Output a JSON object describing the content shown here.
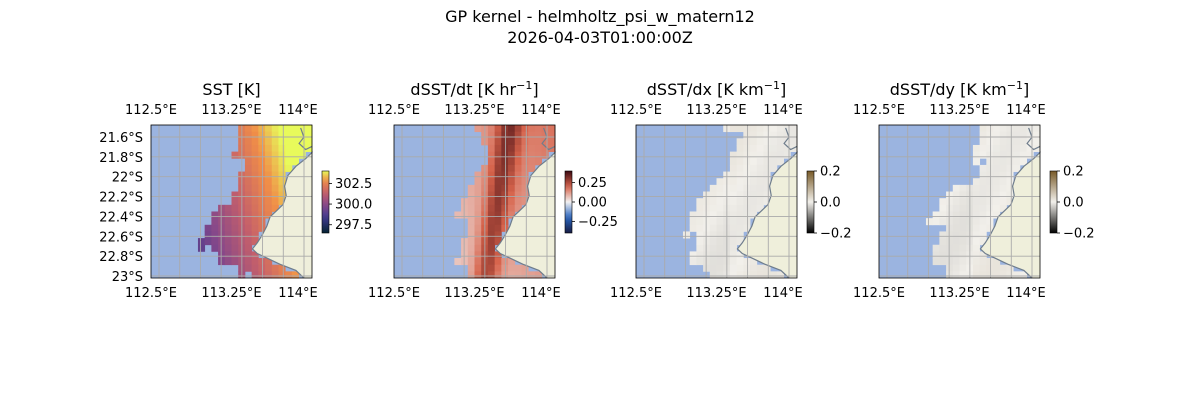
{
  "figure": {
    "title_line1": "GP kernel - helmholtz_psi_w_matern12",
    "title_line2": "2026-04-03T01:00:00Z"
  },
  "colors": {
    "ocean_mask": "#9bb4e0",
    "land": "#efefdb",
    "coast": "#6f7d8c",
    "grid": "#aaaaaa"
  },
  "chart_data": [
    {
      "type": "heatmap",
      "title": "SST [K]",
      "title_sup": "",
      "title_tail": "",
      "colormap": "thermal",
      "xlabel": "",
      "ylabel": "",
      "x_ticks": [
        "112.5°E",
        "113.25°E",
        "114°E"
      ],
      "y_ticks": [
        "21.6°S",
        "21.8°S",
        "22°S",
        "22.2°S",
        "22.4°S",
        "22.6°S",
        "22.8°S",
        "23°S"
      ],
      "show_top_ticks": true,
      "show_left_ticks": true,
      "colorbar": {
        "range": [
          296.5,
          304.0
        ],
        "ticks": [
          "297.5",
          "300.0",
          "302.5"
        ],
        "tick_values": [
          297.5,
          300.0,
          302.5
        ]
      },
      "grid": true
    },
    {
      "type": "heatmap",
      "title": "dSST/dt [K hr",
      "title_sup": "−1",
      "title_tail": "]",
      "colormap": "diverging-balance",
      "xlabel": "",
      "ylabel": "",
      "x_ticks": [
        "112.5°E",
        "113.25°E",
        "114°E"
      ],
      "y_ticks": [],
      "show_top_ticks": true,
      "show_left_ticks": false,
      "colorbar": {
        "range": [
          -0.4,
          0.4
        ],
        "ticks": [
          "0.25",
          "0.00",
          "−0.25"
        ],
        "tick_values": [
          0.25,
          0.0,
          -0.25
        ]
      },
      "grid": true
    },
    {
      "type": "heatmap",
      "title": "dSST/dx [K km",
      "title_sup": "−1",
      "title_tail": "]",
      "colormap": "diverging-gray",
      "xlabel": "",
      "ylabel": "",
      "x_ticks": [
        "112.5°E",
        "113.25°E",
        "114°E"
      ],
      "y_ticks": [],
      "show_top_ticks": true,
      "show_left_ticks": false,
      "colorbar": {
        "range": [
          -0.2,
          0.2
        ],
        "ticks": [
          "0.2",
          "0.0",
          "−0.2"
        ],
        "tick_values": [
          0.2,
          0.0,
          -0.2
        ]
      },
      "grid": true
    },
    {
      "type": "heatmap",
      "title": "dSST/dy [K km",
      "title_sup": "−1",
      "title_tail": "]",
      "colormap": "diverging-gray",
      "xlabel": "",
      "ylabel": "",
      "x_ticks": [
        "112.5°E",
        "113.25°E",
        "114°E"
      ],
      "y_ticks": [],
      "show_top_ticks": true,
      "show_left_ticks": false,
      "colorbar": {
        "range": [
          -0.2,
          0.2
        ],
        "ticks": [
          "0.2",
          "0.0",
          "−0.2"
        ],
        "tick_values": [
          0.2,
          0.0,
          -0.2
        ]
      },
      "grid": true
    }
  ]
}
